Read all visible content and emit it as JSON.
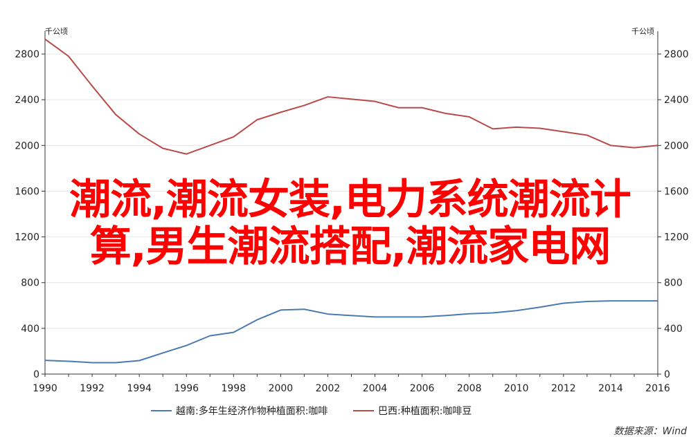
{
  "chart_data": {
    "type": "line",
    "x": [
      1990,
      1991,
      1992,
      1993,
      1994,
      1995,
      1996,
      1997,
      1998,
      1999,
      2000,
      2001,
      2002,
      2003,
      2004,
      2005,
      2006,
      2007,
      2008,
      2009,
      2010,
      2011,
      2012,
      2013,
      2014,
      2015,
      2016
    ],
    "xticks": [
      "1990",
      "1992",
      "1994",
      "1996",
      "1998",
      "2000",
      "2002",
      "2004",
      "2006",
      "2008",
      "2010",
      "2012",
      "2014",
      "2016"
    ],
    "xlim": [
      1990,
      2016
    ],
    "ylim": [
      0,
      3000
    ],
    "yticks": [
      "0",
      "400",
      "800",
      "1200",
      "1600",
      "2000",
      "2400",
      "2800"
    ],
    "y_unit_left": "千公顷",
    "y_unit_right": "千公顷",
    "series": [
      {
        "name": "越南:多年生经济作物种植面积:咖啡",
        "color": "#4a7bb0",
        "values": [
          120,
          112,
          100,
          100,
          118,
          185,
          250,
          335,
          365,
          475,
          560,
          567,
          525,
          512,
          500,
          500,
          500,
          512,
          528,
          535,
          555,
          585,
          620,
          635,
          640,
          640,
          640
        ]
      },
      {
        "name": "巴西:种植面积:咖啡豆",
        "color": "#b94a48",
        "values": [
          2930,
          2780,
          2520,
          2270,
          2100,
          1975,
          1925,
          2000,
          2075,
          2225,
          2290,
          2350,
          2425,
          2405,
          2385,
          2330,
          2330,
          2280,
          2250,
          2145,
          2160,
          2150,
          2120,
          2090,
          2000,
          1980,
          2000
        ]
      }
    ],
    "legend_position": "bottom",
    "grid": true,
    "source": "数据来源：Wind"
  },
  "overlay": {
    "line1": "潮流,潮流女装,电力系统潮流计",
    "line2": "算,男生潮流搭配,潮流家电网",
    "color": "#ff0000"
  }
}
